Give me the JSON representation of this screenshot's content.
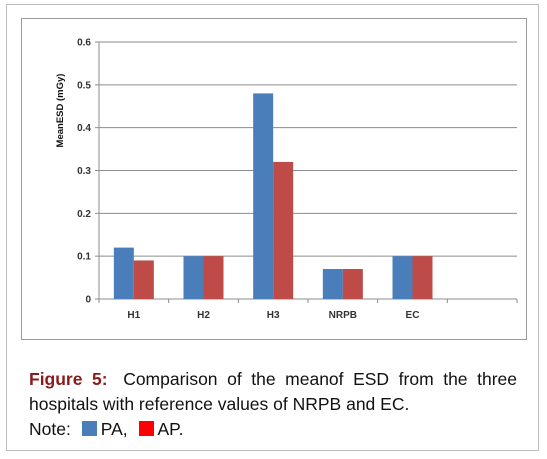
{
  "chart_data": {
    "type": "bar",
    "categories": [
      "H1",
      "H2",
      "H3",
      "NRPB",
      "EC",
      ""
    ],
    "series": [
      {
        "values": [
          0.12,
          0.1,
          0.48,
          0.07,
          0.1,
          null
        ],
        "color": "#4a7ebb"
      },
      {
        "values": [
          0.09,
          0.1,
          0.32,
          0.07,
          0.1,
          null
        ],
        "color": "#be4b48"
      }
    ],
    "ylabel": "MeanESD (mGy)",
    "ylim": [
      0,
      0.6
    ],
    "yticks": [
      "0",
      "0.1",
      "0.2",
      "0.3",
      "0.4",
      "0.5",
      "0.6"
    ],
    "grid": true
  },
  "caption": {
    "lead": "Figure 5:",
    "text": "Comparison of the meanof ESD from the three hospitals with reference values of NRPB and EC.",
    "note_label": "Note:",
    "legend": [
      {
        "label": "PA,",
        "color": "#4a7ebb"
      },
      {
        "label": "AP.",
        "color": "#ff0000"
      }
    ]
  }
}
